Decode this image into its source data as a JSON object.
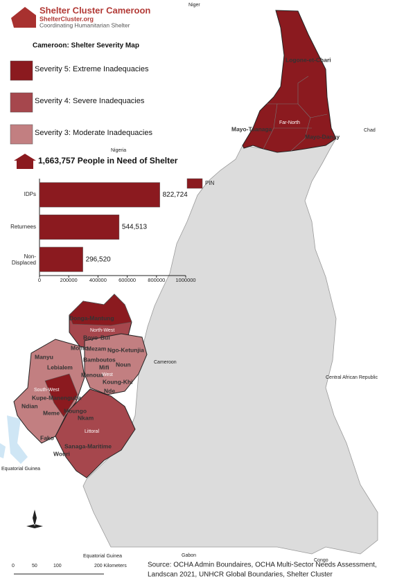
{
  "header": {
    "title": "Shelter Cluster Cameroon",
    "site": "ShelterCluster.org",
    "tagline": "Coordinating Humanitarian Shelter"
  },
  "map_title": "Cameroon: Shelter Severity Map",
  "legend": [
    {
      "label": "Severity 5: Extreme Inadequacies",
      "color": "#8b1a1f"
    },
    {
      "label": "Severity 4: Severe Inadequacies",
      "color": "#a6474d"
    },
    {
      "label": "Severity 3: Moderate Inadequacies",
      "color": "#c27f81"
    }
  ],
  "pin_total": "1,663,757 People in Need of Shelter",
  "chart_data": {
    "type": "bar",
    "orientation": "horizontal",
    "categories": [
      "IDPs",
      "Returnees",
      "Non-Displaced"
    ],
    "series": [
      {
        "name": "PIN",
        "color": "#8b1a1f",
        "values": [
          822724,
          544513,
          296520
        ],
        "value_labels": [
          "822,724",
          "544,513",
          "296,520"
        ]
      }
    ],
    "xlim": [
      0,
      1000000
    ],
    "xticks": [
      0,
      200000,
      400000,
      600000,
      800000,
      1000000
    ]
  },
  "map": {
    "labels": [
      "Niger",
      "Nigeria",
      "Chad",
      "Cameroon",
      "Central African Republic",
      "Equatorial Guinea",
      "Equatorial Guinea",
      "Gabon",
      "Congo",
      "Logone-et-Chari",
      "Far-North",
      "Mayo-Tsanaga",
      "Mayo-Danay",
      "Donga-Mantung",
      "North-West",
      "Boyo",
      "Bui",
      "Momo",
      "Mezam",
      "Ngo-Ketunjia",
      "Manyu",
      "Bamboutos",
      "Noun",
      "Lebialem",
      "Menoua",
      "Mifi",
      "West",
      "Koung-Khi",
      "Nde",
      "South-West",
      "Kupe-Manenguba",
      "Ndian",
      "Meme",
      "Moungo",
      "Nkam",
      "Fako",
      "Littoral",
      "Sanaga-Maritime",
      "Wouri"
    ]
  },
  "scale_bar": {
    "labels": [
      "0",
      "50",
      "100",
      "200 Kilometers"
    ]
  },
  "source": [
    "Source: OCHA Admin Boundaires, OCHA Multi-Sector Needs Assessment,",
    "Landscan 2021, UNHCR Global Boundaries, Shelter Cluster"
  ]
}
